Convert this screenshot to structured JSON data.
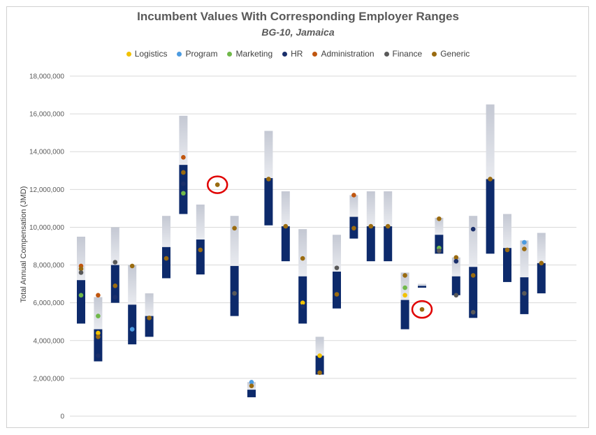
{
  "chart_data": {
    "type": "range-bar-with-points",
    "title": "Incumbent Values With Corresponding Employer Ranges",
    "subtitle": "BG-10, Jamaica",
    "ylabel": "Total Annual Compensation (JMD)",
    "ylim": [
      0,
      18000000
    ],
    "yticks": [
      "0",
      "2,000,000",
      "4,000,000",
      "6,000,000",
      "8,000,000",
      "10,000,000",
      "12,000,000",
      "14,000,000",
      "16,000,000",
      "18,000,000"
    ],
    "grid": true,
    "legend_position": "top",
    "colors": {
      "lower_range": "#0d2a6b",
      "upper_range": "#c9cdd8",
      "highlight_circle": "#e00000"
    },
    "series": [
      {
        "name": "Logistics",
        "color": "#f2c200"
      },
      {
        "name": "Program",
        "color": "#4c9be0"
      },
      {
        "name": "Marketing",
        "color": "#70b84a"
      },
      {
        "name": "HR",
        "color": "#1a2f6b"
      },
      {
        "name": "Administration",
        "color": "#c0560f"
      },
      {
        "name": "Finance",
        "color": "#595959"
      },
      {
        "name": "Generic",
        "color": "#9a6b10"
      }
    ],
    "ranges": [
      {
        "min": 4900000,
        "mid": 7200000,
        "max": 9500000
      },
      {
        "min": 2900000,
        "mid": 4600000,
        "max": 6300000
      },
      {
        "min": 6000000,
        "mid": 8000000,
        "max": 10000000
      },
      {
        "min": 3800000,
        "mid": 5900000,
        "max": 8000000
      },
      {
        "min": 4200000,
        "mid": 5300000,
        "max": 6500000
      },
      {
        "min": 7300000,
        "mid": 8950000,
        "max": 10600000
      },
      {
        "min": 10700000,
        "mid": 13300000,
        "max": 15900000
      },
      {
        "min": 7500000,
        "mid": 9350000,
        "max": 11200000
      },
      null,
      {
        "min": 5300000,
        "mid": 7950000,
        "max": 10600000
      },
      {
        "min": 1000000,
        "mid": 1400000,
        "max": 1800000
      },
      {
        "min": 10100000,
        "mid": 12600000,
        "max": 15100000
      },
      {
        "min": 8200000,
        "mid": 10050000,
        "max": 11900000
      },
      {
        "min": 4900000,
        "mid": 7400000,
        "max": 9900000
      },
      {
        "min": 2200000,
        "mid": 3200000,
        "max": 4200000
      },
      {
        "min": 5700000,
        "mid": 7650000,
        "max": 9600000
      },
      {
        "min": 9400000,
        "mid": 10550000,
        "max": 11700000
      },
      {
        "min": 8200000,
        "mid": 10050000,
        "max": 11900000
      },
      {
        "min": 8200000,
        "mid": 10050000,
        "max": 11900000
      },
      {
        "min": 4600000,
        "mid": 6150000,
        "max": 7600000
      },
      {
        "min": 6800000,
        "mid": 6900000,
        "max": 7000000
      },
      {
        "min": 8600000,
        "mid": 9600000,
        "max": 10500000
      },
      {
        "min": 6400000,
        "mid": 7400000,
        "max": 8400000
      },
      {
        "min": 5200000,
        "mid": 7900000,
        "max": 10600000
      },
      {
        "min": 8600000,
        "mid": 12550000,
        "max": 16500000
      },
      {
        "min": 7100000,
        "mid": 8900000,
        "max": 10700000
      },
      {
        "min": 5400000,
        "mid": 7350000,
        "max": 9300000
      },
      {
        "min": 6500000,
        "mid": 8100000,
        "max": 9700000
      }
    ],
    "points": [
      {
        "slot": 0,
        "series": "Administration",
        "y": 7950000
      },
      {
        "slot": 0,
        "series": "Generic",
        "y": 7800000
      },
      {
        "slot": 0,
        "series": "Finance",
        "y": 7600000
      },
      {
        "slot": 0,
        "series": "Marketing",
        "y": 6400000
      },
      {
        "slot": 1,
        "series": "Administration",
        "y": 6400000
      },
      {
        "slot": 1,
        "series": "Marketing",
        "y": 5300000
      },
      {
        "slot": 1,
        "series": "Logistics",
        "y": 4400000
      },
      {
        "slot": 1,
        "series": "Generic",
        "y": 4200000
      },
      {
        "slot": 1,
        "series": "HR",
        "y": 3200000
      },
      {
        "slot": 2,
        "series": "Finance",
        "y": 8150000
      },
      {
        "slot": 2,
        "series": "Generic",
        "y": 6900000
      },
      {
        "slot": 2,
        "series": "HR",
        "y": 6300000
      },
      {
        "slot": 3,
        "series": "Generic",
        "y": 7950000
      },
      {
        "slot": 3,
        "series": "Program",
        "y": 4600000
      },
      {
        "slot": 4,
        "series": "Generic",
        "y": 5200000
      },
      {
        "slot": 5,
        "series": "Generic",
        "y": 8350000
      },
      {
        "slot": 6,
        "series": "Administration",
        "y": 13700000
      },
      {
        "slot": 6,
        "series": "Generic",
        "y": 12900000
      },
      {
        "slot": 6,
        "series": "HR",
        "y": 12300000
      },
      {
        "slot": 6,
        "series": "Marketing",
        "y": 11800000
      },
      {
        "slot": 7,
        "series": "Generic",
        "y": 8800000
      },
      {
        "slot": 8,
        "series": "Generic",
        "y": 12250000,
        "highlight": true
      },
      {
        "slot": 9,
        "series": "Generic",
        "y": 9950000
      },
      {
        "slot": 9,
        "series": "Finance",
        "y": 6500000
      },
      {
        "slot": 10,
        "series": "Program",
        "y": 1800000
      },
      {
        "slot": 10,
        "series": "Generic",
        "y": 1600000
      },
      {
        "slot": 11,
        "series": "Generic",
        "y": 12550000
      },
      {
        "slot": 12,
        "series": "Generic",
        "y": 10050000
      },
      {
        "slot": 13,
        "series": "Generic",
        "y": 8350000
      },
      {
        "slot": 13,
        "series": "Logistics",
        "y": 6000000
      },
      {
        "slot": 13,
        "series": "HR",
        "y": 5800000
      },
      {
        "slot": 14,
        "series": "Logistics",
        "y": 3200000
      },
      {
        "slot": 14,
        "series": "Generic",
        "y": 2300000
      },
      {
        "slot": 15,
        "series": "Finance",
        "y": 7850000
      },
      {
        "slot": 15,
        "series": "Generic",
        "y": 6450000
      },
      {
        "slot": 16,
        "series": "Administration",
        "y": 11700000
      },
      {
        "slot": 16,
        "series": "Generic",
        "y": 9950000
      },
      {
        "slot": 17,
        "series": "Generic",
        "y": 10050000
      },
      {
        "slot": 18,
        "series": "Generic",
        "y": 10050000
      },
      {
        "slot": 19,
        "series": "Generic",
        "y": 7450000
      },
      {
        "slot": 19,
        "series": "Marketing",
        "y": 6800000
      },
      {
        "slot": 19,
        "series": "Logistics",
        "y": 6400000
      },
      {
        "slot": 20,
        "series": "Generic",
        "y": 5650000,
        "highlight": true
      },
      {
        "slot": 21,
        "series": "Generic",
        "y": 10450000
      },
      {
        "slot": 21,
        "series": "Marketing",
        "y": 8900000
      },
      {
        "slot": 21,
        "series": "Finance",
        "y": 8750000
      },
      {
        "slot": 22,
        "series": "Generic",
        "y": 8400000
      },
      {
        "slot": 22,
        "series": "HR",
        "y": 8200000
      },
      {
        "slot": 22,
        "series": "Finance",
        "y": 6400000
      },
      {
        "slot": 23,
        "series": "HR",
        "y": 9900000
      },
      {
        "slot": 23,
        "series": "Generic",
        "y": 7450000
      },
      {
        "slot": 23,
        "series": "Finance",
        "y": 5500000
      },
      {
        "slot": 24,
        "series": "Generic",
        "y": 12550000
      },
      {
        "slot": 25,
        "series": "Generic",
        "y": 8800000
      },
      {
        "slot": 26,
        "series": "Program",
        "y": 9200000
      },
      {
        "slot": 26,
        "series": "Generic",
        "y": 8850000
      },
      {
        "slot": 26,
        "series": "Finance",
        "y": 6500000
      },
      {
        "slot": 27,
        "series": "Generic",
        "y": 8100000
      }
    ]
  }
}
